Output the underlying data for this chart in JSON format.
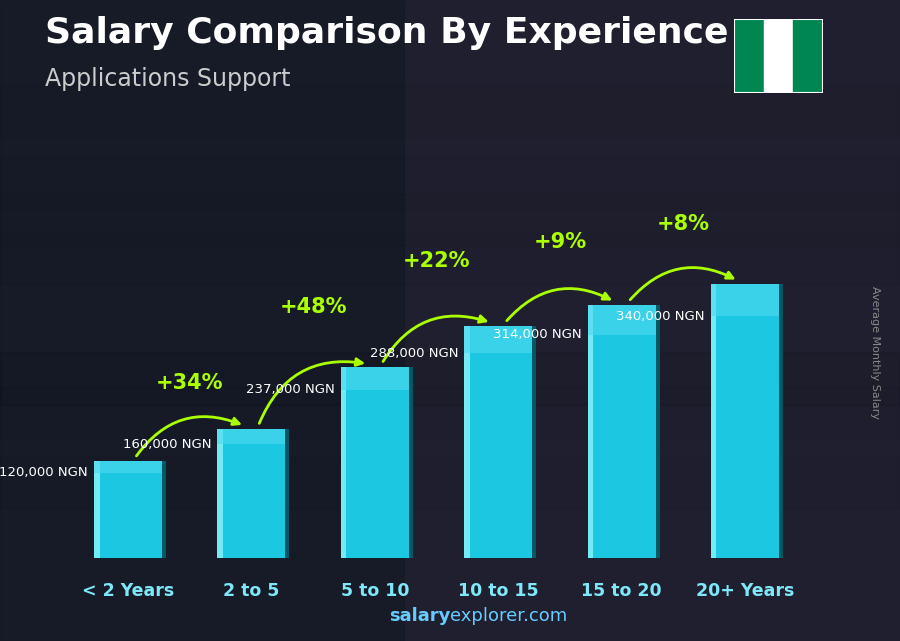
{
  "title": "Salary Comparison By Experience",
  "subtitle": "Applications Support",
  "ylabel": "Average Monthly Salary",
  "categories": [
    "< 2 Years",
    "2 to 5",
    "5 to 10",
    "10 to 15",
    "15 to 20",
    "20+ Years"
  ],
  "values": [
    120000,
    160000,
    237000,
    288000,
    314000,
    340000
  ],
  "labels": [
    "120,000 NGN",
    "160,000 NGN",
    "237,000 NGN",
    "288,000 NGN",
    "314,000 NGN",
    "340,000 NGN"
  ],
  "label_positions": [
    "left",
    "right",
    "right",
    "right",
    "right",
    "right"
  ],
  "pct_changes": [
    "+34%",
    "+48%",
    "+22%",
    "+9%",
    "+8%"
  ],
  "bar_color_main": "#00bcd4",
  "bar_color_light": "#4dd0e1",
  "bar_color_side": "#0097a7",
  "bar_color_top": "#b2ebf2",
  "background_color": "#1a1f2e",
  "text_color": "#ffffff",
  "label_color": "#ffffff",
  "pct_color": "#aaff00",
  "arrow_color": "#aaff00",
  "title_fontsize": 26,
  "subtitle_fontsize": 17,
  "bar_width": 0.55,
  "footer_salary": "salary",
  "footer_rest": "explorer.com",
  "nigeria_flag_green": "#008751",
  "nigeria_flag_white": "#ffffff"
}
